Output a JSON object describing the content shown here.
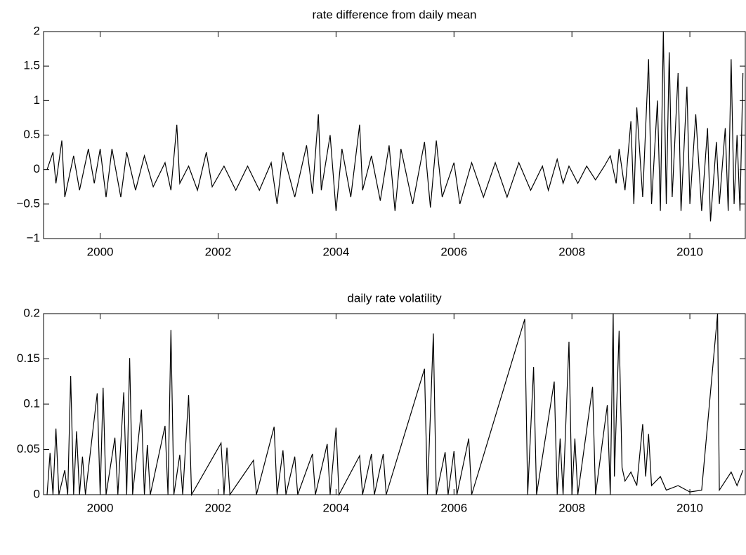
{
  "chart_data": [
    {
      "type": "line",
      "title": "rate difference from daily mean",
      "color": "#000000",
      "x": [
        1999.1,
        1999.2,
        1999.25,
        1999.35,
        1999.4,
        1999.55,
        1999.65,
        1999.8,
        1999.9,
        2000.0,
        2000.1,
        2000.2,
        2000.35,
        2000.45,
        2000.6,
        2000.75,
        2000.9,
        2001.1,
        2001.2,
        2001.3,
        2001.35,
        2001.5,
        2001.65,
        2001.8,
        2001.9,
        2002.1,
        2002.3,
        2002.5,
        2002.7,
        2002.9,
        2003.0,
        2003.1,
        2003.3,
        2003.5,
        2003.6,
        2003.7,
        2003.75,
        2003.9,
        2004.0,
        2004.1,
        2004.25,
        2004.4,
        2004.45,
        2004.6,
        2004.75,
        2004.9,
        2005.0,
        2005.1,
        2005.3,
        2005.5,
        2005.6,
        2005.7,
        2005.8,
        2006.0,
        2006.1,
        2006.3,
        2006.5,
        2006.7,
        2006.9,
        2007.1,
        2007.3,
        2007.5,
        2007.6,
        2007.75,
        2007.85,
        2007.95,
        2008.1,
        2008.25,
        2008.4,
        2008.55,
        2008.65,
        2008.75,
        2008.8,
        2008.9,
        2009.0,
        2009.05,
        2009.1,
        2009.2,
        2009.3,
        2009.35,
        2009.45,
        2009.5,
        2009.55,
        2009.6,
        2009.65,
        2009.7,
        2009.8,
        2009.85,
        2009.95,
        2010.0,
        2010.1,
        2010.2,
        2010.3,
        2010.35,
        2010.45,
        2010.5,
        2010.6,
        2010.65,
        2010.7,
        2010.75,
        2010.8,
        2010.85,
        2010.9
      ],
      "values": [
        0,
        0.25,
        -0.2,
        0.42,
        -0.4,
        0.2,
        -0.3,
        0.3,
        -0.2,
        0.3,
        -0.4,
        0.3,
        -0.4,
        0.25,
        -0.3,
        0.2,
        -0.25,
        0.1,
        -0.3,
        0.65,
        -0.2,
        0.05,
        -0.3,
        0.25,
        -0.25,
        0.05,
        -0.3,
        0.05,
        -0.3,
        0.1,
        -0.5,
        0.25,
        -0.4,
        0.35,
        -0.35,
        0.8,
        -0.3,
        0.5,
        -0.6,
        0.3,
        -0.4,
        0.65,
        -0.3,
        0.2,
        -0.45,
        0.35,
        -0.6,
        0.3,
        -0.5,
        0.4,
        -0.55,
        0.42,
        -0.4,
        0.1,
        -0.5,
        0.1,
        -0.4,
        0.1,
        -0.4,
        0.1,
        -0.3,
        0.05,
        -0.3,
        0.15,
        -0.2,
        0.05,
        -0.2,
        0.05,
        -0.15,
        0.05,
        0.2,
        -0.2,
        0.3,
        -0.3,
        0.7,
        -0.5,
        0.9,
        -0.4,
        1.6,
        -0.5,
        1.0,
        -0.6,
        2.0,
        -0.5,
        1.7,
        -0.4,
        1.4,
        -0.6,
        1.2,
        -0.5,
        0.8,
        -0.6,
        0.6,
        -0.75,
        0.4,
        -0.5,
        0.6,
        -0.6,
        1.6,
        -0.5,
        0.5,
        -0.6,
        1.4
      ],
      "xlim": [
        1999.04,
        2010.94
      ],
      "xticks": [
        2000,
        2002,
        2004,
        2006,
        2008,
        2010
      ],
      "ylim": [
        -1,
        2
      ],
      "yticks": [
        {
          "value": -1,
          "label": "−1"
        },
        {
          "value": -0.5,
          "label": "−0.5"
        },
        0,
        0.5,
        1,
        1.5,
        2
      ]
    },
    {
      "type": "line",
      "title": "daily rate volatility",
      "color": "#000000",
      "x": [
        1999.1,
        1999.15,
        1999.2,
        1999.25,
        1999.3,
        1999.4,
        1999.45,
        1999.5,
        1999.55,
        1999.6,
        1999.65,
        1999.7,
        1999.75,
        1999.95,
        2000.0,
        2000.05,
        2000.1,
        2000.25,
        2000.3,
        2000.4,
        2000.45,
        2000.5,
        2000.55,
        2000.7,
        2000.75,
        2000.8,
        2000.85,
        2001.1,
        2001.15,
        2001.2,
        2001.25,
        2001.35,
        2001.4,
        2001.5,
        2001.55,
        2002.05,
        2002.1,
        2002.15,
        2002.2,
        2002.6,
        2002.65,
        2002.95,
        2003.0,
        2003.1,
        2003.15,
        2003.3,
        2003.35,
        2003.6,
        2003.65,
        2003.85,
        2003.9,
        2004.0,
        2004.05,
        2004.4,
        2004.45,
        2004.6,
        2004.65,
        2004.8,
        2004.85,
        2005.5,
        2005.55,
        2005.65,
        2005.7,
        2005.85,
        2005.9,
        2006.0,
        2006.05,
        2006.25,
        2006.3,
        2007.2,
        2007.25,
        2007.35,
        2007.4,
        2007.7,
        2007.75,
        2007.8,
        2007.85,
        2007.95,
        2008.0,
        2008.05,
        2008.1,
        2008.35,
        2008.4,
        2008.6,
        2008.65,
        2008.7,
        2008.72,
        2008.8,
        2008.85,
        2008.9,
        2009.0,
        2009.1,
        2009.2,
        2009.25,
        2009.3,
        2009.35,
        2009.5,
        2009.6,
        2009.8,
        2010.0,
        2010.2,
        2010.47,
        2010.5,
        2010.6,
        2010.7,
        2010.8,
        2010.9
      ],
      "values": [
        0,
        0.046,
        0,
        0.073,
        0,
        0.027,
        0,
        0.131,
        0,
        0.07,
        0,
        0.042,
        0,
        0.112,
        0,
        0.118,
        0,
        0.063,
        0,
        0.113,
        0,
        0.151,
        0,
        0.094,
        0,
        0.055,
        0,
        0.076,
        0,
        0.182,
        0,
        0.044,
        0,
        0.11,
        0,
        0.057,
        0,
        0.052,
        0,
        0.038,
        0,
        0.075,
        0,
        0.049,
        0,
        0.042,
        0,
        0.045,
        0,
        0.056,
        0,
        0.074,
        0,
        0.043,
        0,
        0.045,
        0,
        0.045,
        0,
        0.139,
        0,
        0.178,
        0,
        0.047,
        0,
        0.048,
        0,
        0.062,
        0,
        0.194,
        0,
        0.141,
        0,
        0.125,
        0,
        0.062,
        0,
        0.169,
        0,
        0.062,
        0,
        0.119,
        0,
        0.099,
        0,
        0.2,
        0.02,
        0.181,
        0.03,
        0.015,
        0.025,
        0.01,
        0.078,
        0.02,
        0.067,
        0.01,
        0.02,
        0.005,
        0.01,
        0.003,
        0.005,
        0.2,
        0.005,
        0.015,
        0.025,
        0.01,
        0.027
      ],
      "xlim": [
        1999.04,
        2010.94
      ],
      "xticks": [
        2000,
        2002,
        2004,
        2006,
        2008,
        2010
      ],
      "ylim": [
        0,
        0.2
      ],
      "yticks": [
        0,
        0.05,
        0.1,
        0.15,
        0.2
      ]
    }
  ]
}
